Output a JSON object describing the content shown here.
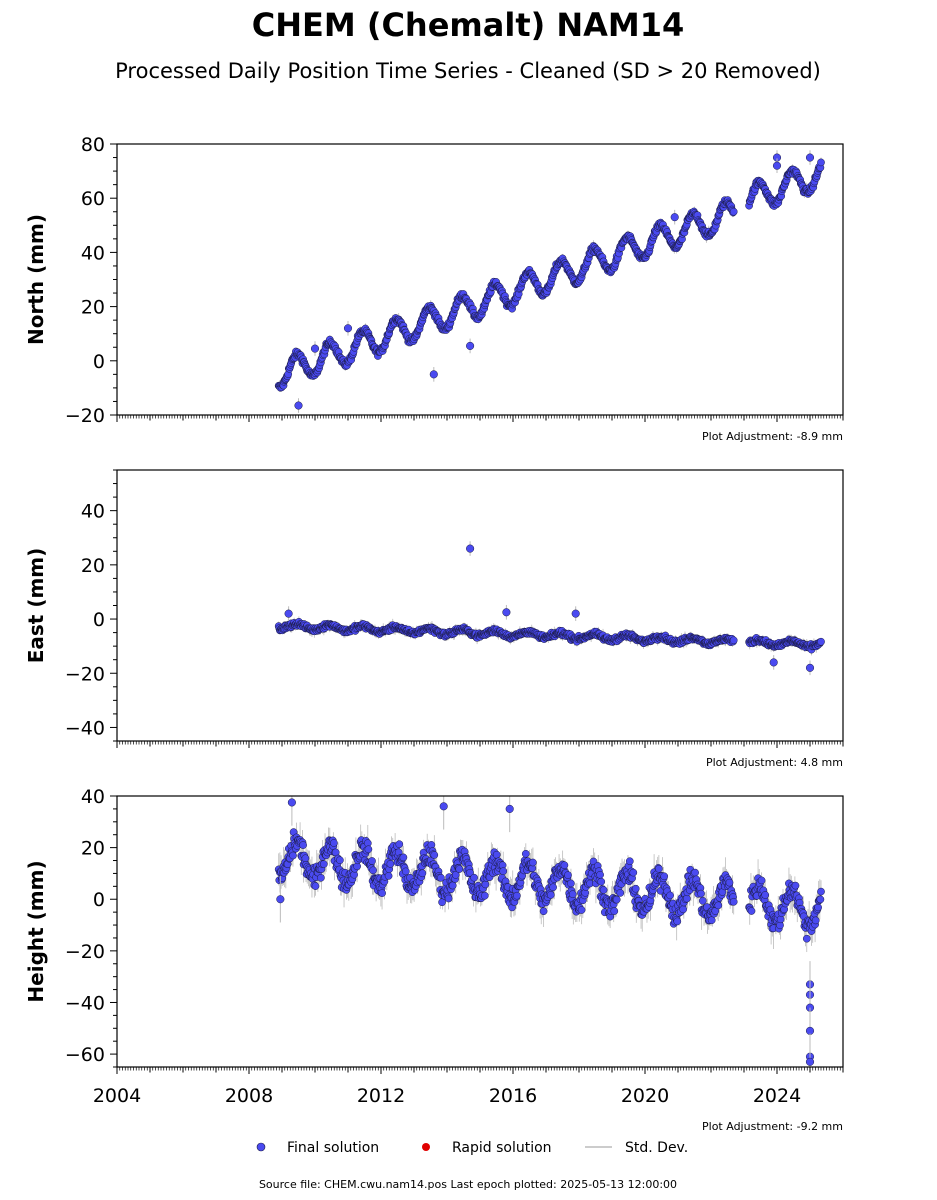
{
  "title": "CHEM (Chemalt) NAM14",
  "subtitle": "Processed Daily Position Time Series - Cleaned (SD > 20 Removed)",
  "legend": {
    "final": "Final solution",
    "rapid": "Rapid solution",
    "stddev": "Std. Dev."
  },
  "footer": "Source file: CHEM.cwu.nam14.pos  Last epoch plotted: 2025-05-13 12:00:00",
  "colors": {
    "final_fill": "#4a4af0",
    "final_edge": "#1a1a40",
    "rapid": "#e00000",
    "stddev": "#bbbbbb"
  },
  "chart_data": [
    {
      "type": "scatter",
      "name": "north",
      "ylabel": "North (mm)",
      "ylim": [
        -20,
        80
      ],
      "yticks": [
        -20,
        0,
        20,
        40,
        60,
        80
      ],
      "xlim": [
        2004,
        2026
      ],
      "xticks": [
        2004,
        2008,
        2012,
        2016,
        2020,
        2024
      ],
      "adjustment": "Plot Adjustment: -8.9 mm",
      "trend": {
        "start_x": 2008.9,
        "start_y": -5,
        "end_x": 2025.35,
        "end_y": 66,
        "seasonal_amp": 5
      },
      "gap": [
        2022.7,
        2023.15
      ],
      "outliers": [
        [
          2009.5,
          -16.5
        ],
        [
          2010.0,
          4.5
        ],
        [
          2011.0,
          12
        ],
        [
          2013.6,
          -5
        ],
        [
          2014.7,
          5.5
        ],
        [
          2020.9,
          53
        ],
        [
          2024.0,
          75
        ],
        [
          2024.0,
          72
        ],
        [
          2025.0,
          75
        ]
      ]
    },
    {
      "type": "scatter",
      "name": "east",
      "ylabel": "East (mm)",
      "ylim": [
        -45,
        55
      ],
      "yticks": [
        -40,
        -20,
        0,
        20,
        40
      ],
      "xlim": [
        2004,
        2026
      ],
      "xticks": [
        2004,
        2008,
        2012,
        2016,
        2020,
        2024
      ],
      "adjustment": "Plot Adjustment: 4.8 mm",
      "trend": {
        "start_x": 2008.9,
        "start_y": -2.5,
        "end_x": 2025.35,
        "end_y": -9.5,
        "seasonal_amp": 1
      },
      "gap": [
        2022.7,
        2023.15
      ],
      "outliers": [
        [
          2014.7,
          26
        ],
        [
          2015.8,
          2.5
        ],
        [
          2017.9,
          2
        ],
        [
          2023.9,
          -16
        ],
        [
          2025.0,
          -18
        ],
        [
          2009.2,
          2
        ]
      ]
    },
    {
      "type": "scatter",
      "name": "height",
      "ylabel": "Height (mm)",
      "ylim": [
        -65,
        40
      ],
      "yticks": [
        -60,
        -40,
        -20,
        0,
        20,
        40
      ],
      "xlim": [
        2004,
        2026
      ],
      "xticks": [
        2004,
        2008,
        2012,
        2016,
        2020,
        2024
      ],
      "adjustment": "Plot Adjustment: -9.2 mm",
      "trend": {
        "start_x": 2008.9,
        "start_y": 16,
        "end_x": 2025.35,
        "end_y": -4,
        "seasonal_amp": 7
      },
      "gap": [
        2022.7,
        2023.15
      ],
      "outliers": [
        [
          2008.95,
          0
        ],
        [
          2009.3,
          37.5
        ],
        [
          2013.9,
          36
        ],
        [
          2015.9,
          35
        ],
        [
          2025.0,
          -33
        ],
        [
          2025.0,
          -37
        ],
        [
          2025.0,
          -42
        ],
        [
          2025.0,
          -51
        ],
        [
          2025.0,
          -61
        ],
        [
          2025.0,
          -63
        ]
      ]
    }
  ]
}
